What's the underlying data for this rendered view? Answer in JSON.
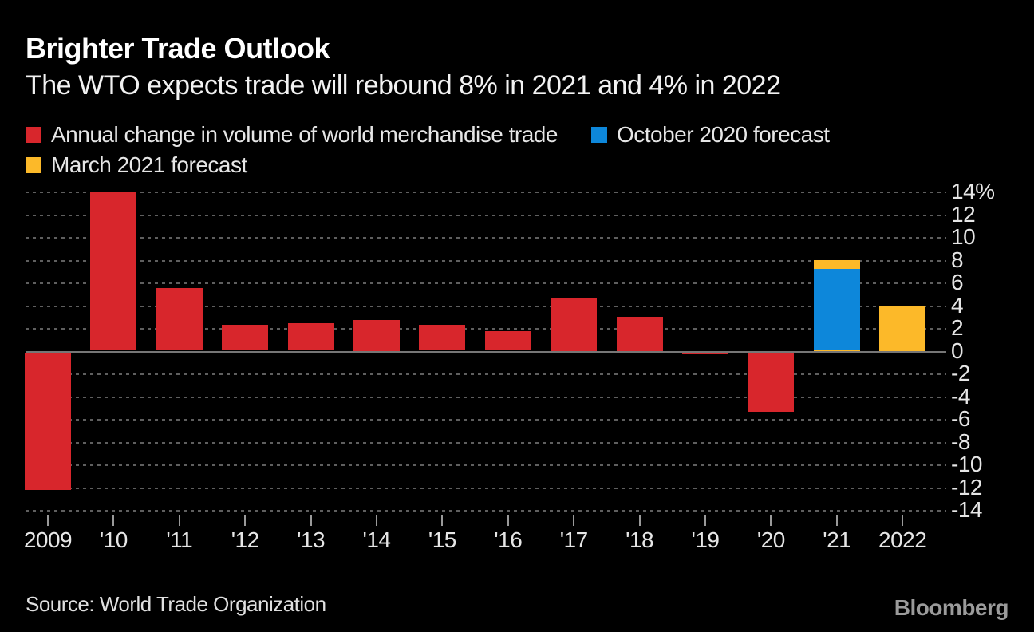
{
  "header": {
    "title": "Brighter Trade Outlook",
    "subtitle": "The WTO expects trade will rebound 8% in 2021 and 4% in 2022"
  },
  "legend": {
    "items": [
      {
        "label": "Annual change in volume of world merchandise trade",
        "color": "#d8262c"
      },
      {
        "label": "October 2020 forecast",
        "color": "#0d87da"
      },
      {
        "label": "March 2021 forecast",
        "color": "#fcb929"
      }
    ]
  },
  "footer": {
    "source_label": "Source: World Trade Organization",
    "brand": "Bloomberg"
  },
  "colors": {
    "background": "#000000",
    "red": "#d8262c",
    "blue": "#0d87da",
    "yellow": "#fcb929",
    "grid": "#5f5f5f",
    "zero_line": "#767676",
    "axis_text": "#e6e6e6"
  },
  "chart_data": {
    "type": "bar",
    "title": "Brighter Trade Outlook",
    "subtitle": "The WTO expects trade will rebound 8% in 2021 and 4% in 2022",
    "categories": [
      "2009",
      "'10",
      "'11",
      "'12",
      "'13",
      "'14",
      "'15",
      "'16",
      "'17",
      "'18",
      "'19",
      "'20",
      "'21",
      "2022"
    ],
    "series": [
      {
        "name": "Annual change in volume of world merchandise trade",
        "color": "#d8262c",
        "values": [
          -12.1,
          13.9,
          5.5,
          2.3,
          2.4,
          2.7,
          2.3,
          1.7,
          4.7,
          3.0,
          -0.2,
          -5.2,
          null,
          null
        ]
      },
      {
        "name": "October 2020 forecast",
        "color": "#0d87da",
        "values": [
          null,
          null,
          null,
          null,
          null,
          null,
          null,
          null,
          null,
          null,
          null,
          null,
          7.2,
          null
        ]
      },
      {
        "name": "March 2021 forecast",
        "color": "#fcb929",
        "values": [
          null,
          null,
          null,
          null,
          null,
          null,
          null,
          null,
          null,
          null,
          null,
          null,
          8.0,
          4.0
        ]
      }
    ],
    "ylim": [
      -14,
      14
    ],
    "ytick_step": 2,
    "ytick_top_label": "14%",
    "yaxis_side": "right",
    "grid": "horizontal-dotted",
    "legend_position": "top-left",
    "source": "Source: World Trade Organization"
  }
}
